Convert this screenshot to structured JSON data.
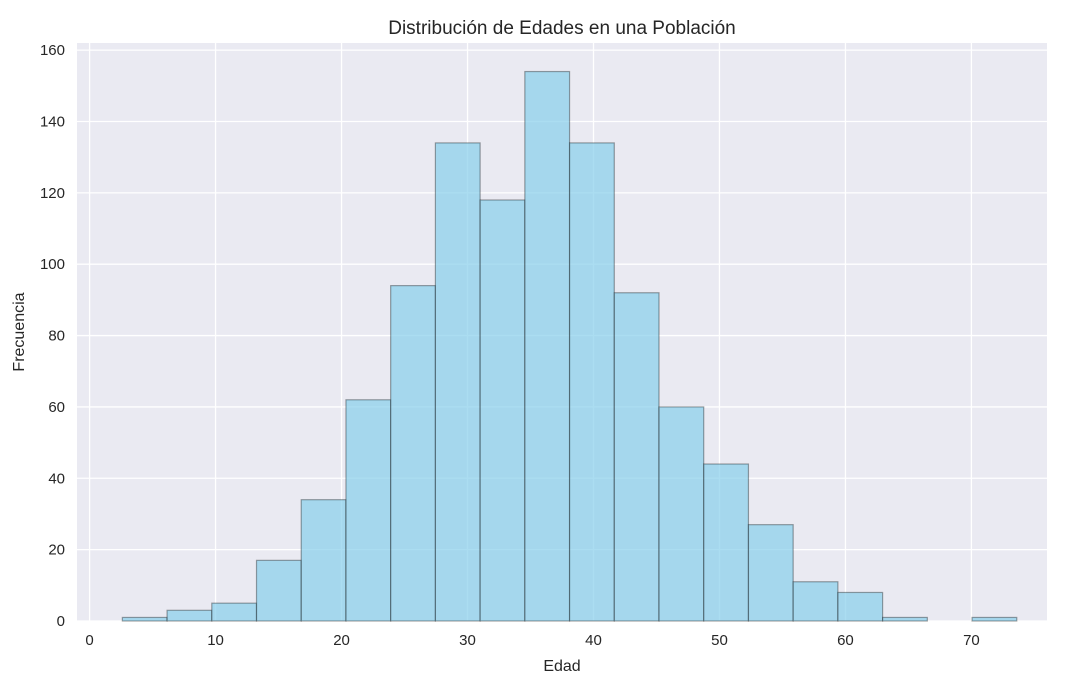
{
  "chart_data": {
    "type": "bar",
    "title": "Distribución de Edades en una Población",
    "xlabel": "Edad",
    "ylabel": "Frecuencia",
    "bin_edges": [
      2.6,
      6.15,
      9.7,
      13.25,
      16.8,
      20.35,
      23.9,
      27.45,
      31.0,
      34.55,
      38.1,
      41.65,
      45.2,
      48.75,
      52.3,
      55.85,
      59.4,
      62.95,
      66.5,
      70.05,
      73.6
    ],
    "values": [
      1,
      3,
      5,
      17,
      34,
      62,
      94,
      134,
      118,
      154,
      134,
      92,
      60,
      44,
      27,
      11,
      8,
      1,
      0,
      1
    ],
    "xlim": [
      -1,
      76
    ],
    "ylim": [
      0,
      162
    ],
    "xticks": [
      0,
      10,
      20,
      30,
      40,
      50,
      60,
      70
    ],
    "yticks": [
      0,
      20,
      40,
      60,
      80,
      100,
      120,
      140,
      160
    ],
    "grid": true,
    "colors": {
      "bar_fill": "#87ceeb",
      "bar_edge": "#000000",
      "plot_bg": "#eaeaf2",
      "grid": "#ffffff",
      "text": "#262626"
    }
  }
}
